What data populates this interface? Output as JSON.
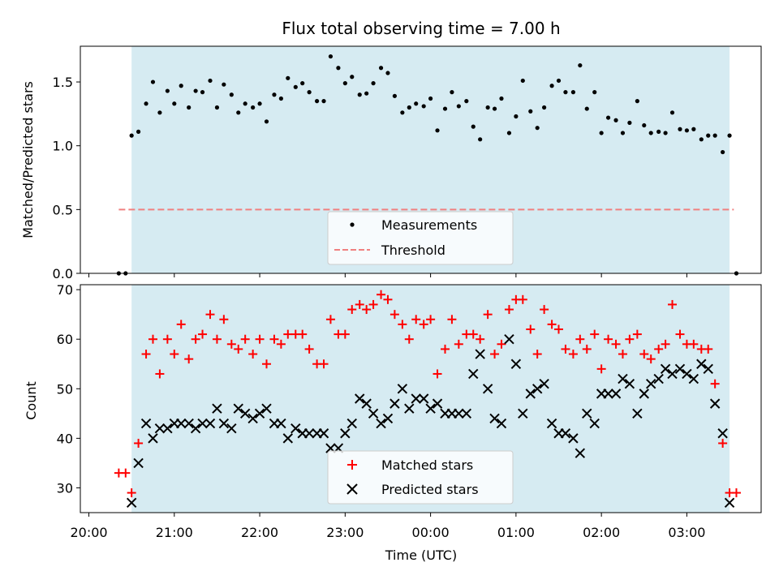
{
  "chart_data": [
    {
      "type": "scatter",
      "title": "Flux total observing time = 7.00 h",
      "xlabel": "",
      "ylabel": "Matched/Predicted stars",
      "ylim": [
        0,
        1.78
      ],
      "yticks": [
        "0.0",
        "0.5",
        "1.0",
        "1.5"
      ],
      "ytick_values": [
        0,
        0.5,
        1.0,
        1.5
      ],
      "xlim_hours": [
        -0.1,
        7.87
      ],
      "shaded_range_hours": [
        0.5,
        7.5
      ],
      "shade_color": "#add8e6",
      "legend": {
        "placement": "lower center",
        "entries": [
          "Measurements",
          "Threshold"
        ]
      },
      "threshold": {
        "name": "Threshold",
        "value": 0.5,
        "x_range_hours": [
          0.35,
          7.55
        ],
        "color": "#f08080",
        "style": "dashed"
      },
      "series": [
        {
          "name": "Measurements",
          "color": "#000000",
          "marker": "dot",
          "x_hours": [
            0.35,
            0.43,
            0.5,
            0.58,
            0.67,
            0.75,
            0.83,
            0.92,
            1.0,
            1.08,
            1.17,
            1.25,
            1.33,
            1.42,
            1.5,
            1.58,
            1.67,
            1.75,
            1.83,
            1.92,
            2.0,
            2.08,
            2.17,
            2.25,
            2.33,
            2.42,
            2.5,
            2.58,
            2.67,
            2.75,
            2.83,
            2.92,
            3.0,
            3.08,
            3.17,
            3.25,
            3.33,
            3.42,
            3.5,
            3.58,
            3.67,
            3.75,
            3.83,
            3.92,
            4.0,
            4.08,
            4.17,
            4.25,
            4.33,
            4.42,
            4.5,
            4.58,
            4.67,
            4.75,
            4.83,
            4.92,
            5.0,
            5.08,
            5.17,
            5.25,
            5.33,
            5.42,
            5.5,
            5.58,
            5.67,
            5.75,
            5.83,
            5.92,
            6.0,
            6.08,
            6.17,
            6.25,
            6.33,
            6.42,
            6.5,
            6.58,
            6.67,
            6.75,
            6.83,
            6.92,
            7.0,
            7.08,
            7.17,
            7.25,
            7.33,
            7.42,
            7.5,
            7.58
          ],
          "values": [
            0.0,
            0.0,
            1.08,
            1.11,
            1.33,
            1.5,
            1.26,
            1.43,
            1.33,
            1.47,
            1.3,
            1.43,
            1.42,
            1.51,
            1.3,
            1.48,
            1.4,
            1.26,
            1.33,
            1.3,
            1.33,
            1.19,
            1.4,
            1.37,
            1.53,
            1.46,
            1.49,
            1.42,
            1.35,
            1.35,
            1.7,
            1.61,
            1.49,
            1.54,
            1.4,
            1.41,
            1.49,
            1.61,
            1.57,
            1.39,
            1.26,
            1.3,
            1.33,
            1.31,
            1.37,
            1.12,
            1.29,
            1.42,
            1.31,
            1.35,
            1.15,
            1.05,
            1.3,
            1.29,
            1.37,
            1.1,
            1.23,
            1.51,
            1.27,
            1.14,
            1.3,
            1.47,
            1.51,
            1.42,
            1.42,
            1.63,
            1.29,
            1.42,
            1.1,
            1.22,
            1.2,
            1.1,
            1.18,
            1.35,
            1.16,
            1.1,
            1.11,
            1.1,
            1.26,
            1.13,
            1.12,
            1.13,
            1.05,
            1.08,
            1.08,
            0.95,
            1.08,
            0.0
          ]
        }
      ]
    },
    {
      "type": "scatter",
      "title": "",
      "xlabel": "Time (UTC)",
      "ylabel": "Count",
      "ylim": [
        25,
        71
      ],
      "yticks": [
        "30",
        "40",
        "50",
        "60",
        "70"
      ],
      "ytick_values": [
        30,
        40,
        50,
        60,
        70
      ],
      "xlim_hours": [
        -0.1,
        7.87
      ],
      "xticks": [
        "20:00",
        "21:00",
        "22:00",
        "23:00",
        "00:00",
        "01:00",
        "02:00",
        "03:00"
      ],
      "xtick_hours": [
        0,
        1,
        2,
        3,
        4,
        5,
        6,
        7
      ],
      "shaded_range_hours": [
        0.5,
        7.5
      ],
      "shade_color": "#add8e6",
      "legend": {
        "placement": "lower center",
        "entries": [
          "Matched stars",
          "Predicted stars"
        ]
      },
      "series": [
        {
          "name": "Matched stars",
          "color": "#ff0000",
          "marker": "plus",
          "x_hours": [
            0.35,
            0.43,
            0.5,
            0.58,
            0.67,
            0.75,
            0.83,
            0.92,
            1.0,
            1.08,
            1.17,
            1.25,
            1.33,
            1.42,
            1.5,
            1.58,
            1.67,
            1.75,
            1.83,
            1.92,
            2.0,
            2.08,
            2.17,
            2.25,
            2.33,
            2.42,
            2.5,
            2.58,
            2.67,
            2.75,
            2.83,
            2.92,
            3.0,
            3.08,
            3.17,
            3.25,
            3.33,
            3.42,
            3.5,
            3.58,
            3.67,
            3.75,
            3.83,
            3.92,
            4.0,
            4.08,
            4.17,
            4.25,
            4.33,
            4.42,
            4.5,
            4.58,
            4.67,
            4.75,
            4.83,
            4.92,
            5.0,
            5.08,
            5.17,
            5.25,
            5.33,
            5.42,
            5.5,
            5.58,
            5.67,
            5.75,
            5.83,
            5.92,
            6.0,
            6.08,
            6.17,
            6.25,
            6.33,
            6.42,
            6.5,
            6.58,
            6.67,
            6.75,
            6.83,
            6.92,
            7.0,
            7.08,
            7.17,
            7.25,
            7.33,
            7.42,
            7.5,
            7.58
          ],
          "values": [
            33,
            33,
            29,
            39,
            57,
            60,
            53,
            60,
            57,
            63,
            56,
            60,
            61,
            65,
            60,
            64,
            59,
            58,
            60,
            57,
            60,
            55,
            60,
            59,
            61,
            61,
            61,
            58,
            55,
            55,
            64,
            61,
            61,
            66,
            67,
            66,
            67,
            69,
            68,
            65,
            63,
            60,
            64,
            63,
            64,
            53,
            58,
            64,
            59,
            61,
            61,
            60,
            65,
            57,
            59,
            66,
            68,
            68,
            62,
            57,
            66,
            63,
            62,
            58,
            57,
            60,
            58,
            61,
            54,
            60,
            59,
            57,
            60,
            61,
            57,
            56,
            58,
            59,
            67,
            61,
            59,
            59,
            58,
            58,
            51,
            39,
            29,
            29
          ]
        },
        {
          "name": "Predicted stars",
          "color": "#000000",
          "marker": "cross",
          "x_hours": [
            0.5,
            0.58,
            0.67,
            0.75,
            0.83,
            0.92,
            1.0,
            1.08,
            1.17,
            1.25,
            1.33,
            1.42,
            1.5,
            1.58,
            1.67,
            1.75,
            1.83,
            1.92,
            2.0,
            2.08,
            2.17,
            2.25,
            2.33,
            2.42,
            2.5,
            2.58,
            2.67,
            2.75,
            2.83,
            2.92,
            3.0,
            3.08,
            3.17,
            3.25,
            3.33,
            3.42,
            3.5,
            3.58,
            3.67,
            3.75,
            3.83,
            3.92,
            4.0,
            4.08,
            4.17,
            4.25,
            4.33,
            4.42,
            4.5,
            4.58,
            4.67,
            4.75,
            4.83,
            4.92,
            5.0,
            5.08,
            5.17,
            5.25,
            5.33,
            5.42,
            5.5,
            5.58,
            5.67,
            5.75,
            5.83,
            5.92,
            6.0,
            6.08,
            6.17,
            6.25,
            6.33,
            6.42,
            6.5,
            6.58,
            6.67,
            6.75,
            6.83,
            6.92,
            7.0,
            7.08,
            7.17,
            7.25,
            7.33,
            7.42,
            7.5
          ],
          "values": [
            27,
            35,
            43,
            40,
            42,
            42,
            43,
            43,
            43,
            42,
            43,
            43,
            46,
            43,
            42,
            46,
            45,
            44,
            45,
            46,
            43,
            43,
            40,
            42,
            41,
            41,
            41,
            41,
            38,
            38,
            41,
            43,
            48,
            47,
            45,
            43,
            44,
            47,
            50,
            46,
            48,
            48,
            46,
            47,
            45,
            45,
            45,
            45,
            53,
            57,
            50,
            44,
            43,
            60,
            55,
            45,
            49,
            50,
            51,
            43,
            41,
            41,
            40,
            37,
            45,
            43,
            49,
            49,
            49,
            52,
            51,
            45,
            49,
            51,
            52,
            54,
            53,
            54,
            53,
            52,
            55,
            54,
            47,
            41,
            27
          ]
        }
      ]
    }
  ]
}
